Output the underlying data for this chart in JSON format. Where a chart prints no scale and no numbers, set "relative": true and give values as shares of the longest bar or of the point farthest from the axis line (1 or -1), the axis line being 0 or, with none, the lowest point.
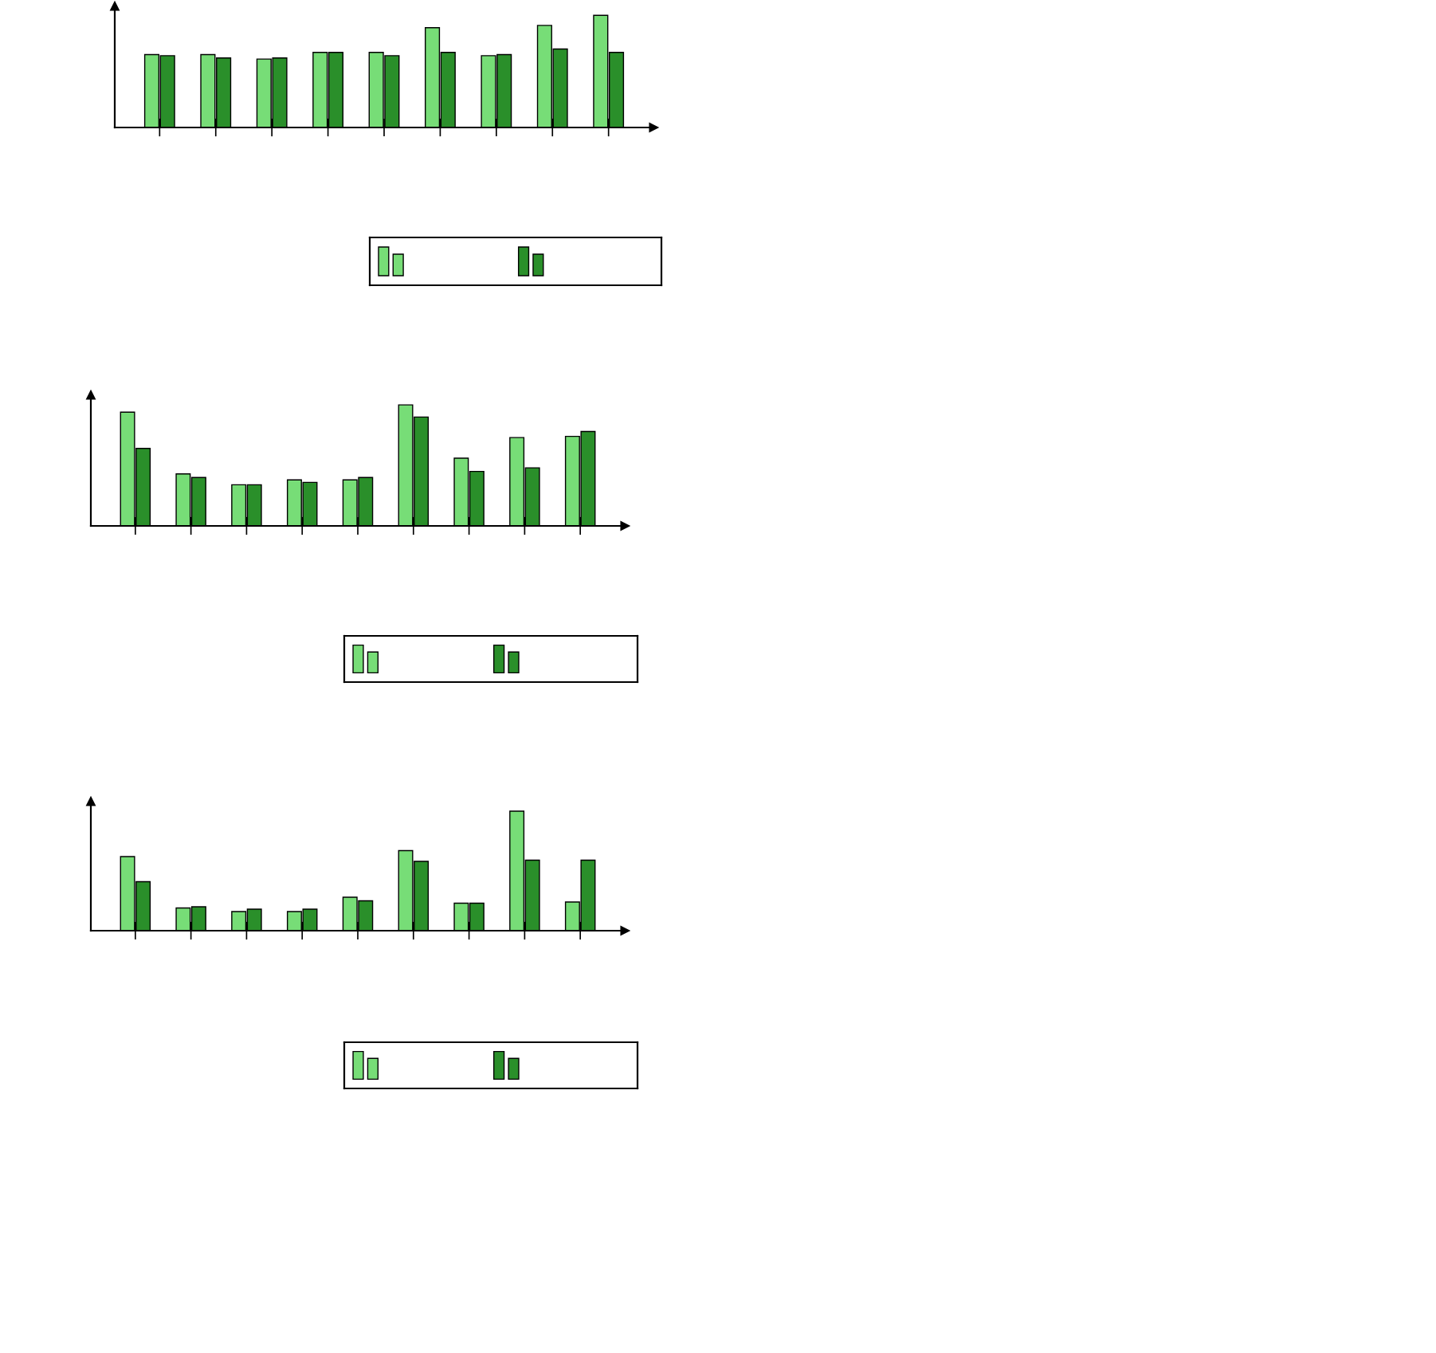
{
  "chart_data": [
    {
      "type": "bar",
      "relative": true,
      "categories": [
        null,
        null,
        null,
        null,
        null,
        null,
        null,
        null,
        null
      ],
      "series": [
        {
          "color": "#77dd77",
          "values": [
            0.65,
            0.65,
            0.61,
            0.67,
            0.67,
            0.89,
            0.64,
            0.91,
            1
          ]
        },
        {
          "color": "#2a8f2a",
          "values": [
            0.64,
            0.62,
            0.62,
            0.67,
            0.64,
            0.67,
            0.65,
            0.7,
            0.67
          ]
        }
      ]
    },
    {
      "type": "bar",
      "relative": true,
      "categories": [
        null,
        null,
        null,
        null,
        null,
        null,
        null,
        null,
        null
      ],
      "series": [
        {
          "color": "#77dd77",
          "values": [
            0.94,
            0.43,
            0.34,
            0.38,
            0.38,
            1,
            0.56,
            0.73,
            0.74
          ]
        },
        {
          "color": "#2a8f2a",
          "values": [
            0.64,
            0.4,
            0.34,
            0.36,
            0.4,
            0.9,
            0.45,
            0.48,
            0.78
          ]
        }
      ]
    },
    {
      "type": "bar",
      "relative": true,
      "categories": [
        null,
        null,
        null,
        null,
        null,
        null,
        null,
        null,
        null
      ],
      "series": [
        {
          "color": "#77dd77",
          "values": [
            0.62,
            0.19,
            0.16,
            0.16,
            0.28,
            0.67,
            0.23,
            1,
            0.24
          ]
        },
        {
          "color": "#2a8f2a",
          "values": [
            0.41,
            0.2,
            0.18,
            0.18,
            0.25,
            0.58,
            0.23,
            0.59,
            0.59
          ]
        }
      ]
    }
  ]
}
